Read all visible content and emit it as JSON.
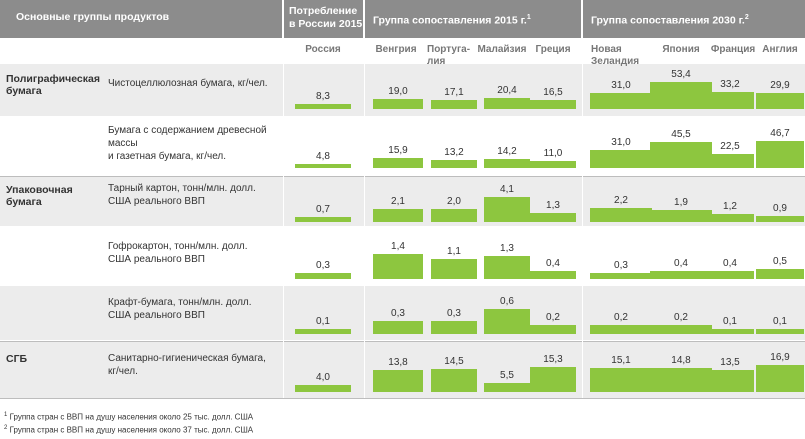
{
  "header": {
    "groups_label": "Основные группы продуктов",
    "consumption_label": [
      "Потребление",
      "в России 2015"
    ],
    "group2015_label": "Группа сопоставления 2015 г.",
    "group2015_note": "1",
    "group2030_label": "Группа сопоставления 2030 г.",
    "group2030_note": "2"
  },
  "countries": [
    {
      "lines": [
        "Россия"
      ]
    },
    {
      "lines": [
        "Венгрия"
      ]
    },
    {
      "lines": [
        "Португа-",
        "лия"
      ]
    },
    {
      "lines": [
        "Малайзия"
      ]
    },
    {
      "lines": [
        "Греция"
      ]
    },
    {
      "lines": [
        "Новая",
        "Зеландия"
      ]
    },
    {
      "lines": [
        "Япония"
      ]
    },
    {
      "lines": [
        "Франция"
      ]
    },
    {
      "lines": [
        "Англия"
      ]
    }
  ],
  "groups": [
    {
      "lines": [
        "Полиграфическая",
        "бумага"
      ]
    },
    {
      "lines": [
        "Упаковочная",
        "бумага"
      ]
    },
    {
      "lines": [
        "СГБ"
      ]
    }
  ],
  "products": [
    {
      "lines": [
        "Чистоцеллюлозная бумага, кг/чел."
      ]
    },
    {
      "lines": [
        "Бумага с содержанием древесной массы",
        "и газетная бумага, кг/чел."
      ]
    },
    {
      "lines": [
        "Тарный картон, тонн/млн. долл.",
        "США реального ВВП"
      ]
    },
    {
      "lines": [
        "Гофрокартон, тонн/млн. долл.",
        "США реального ВВП"
      ]
    },
    {
      "lines": [
        "Крафт-бумага, тонн/млн. долл.",
        "США реального ВВП"
      ]
    },
    {
      "lines": [
        "Санитарно-гигиеническая бумага,",
        "кг/чел."
      ]
    }
  ],
  "chart_data": {
    "type": "bar",
    "categories": [
      "Россия",
      "Венгрия",
      "Португалия",
      "Малайзия",
      "Греция",
      "Новая Зеландия",
      "Япония",
      "Франция",
      "Англия"
    ],
    "rows": [
      {
        "group": "Полиграфическая бумага",
        "product": "Чистоцеллюлозная бумага, кг/чел.",
        "values": [
          8.3,
          19.0,
          17.1,
          20.4,
          16.5,
          31.0,
          53.4,
          33.2,
          29.9
        ],
        "labels": [
          "8,3",
          "19,0",
          "17,1",
          "20,4",
          "16,5",
          "31,0",
          "53,4",
          "33,2",
          "29,9"
        ]
      },
      {
        "group": "Полиграфическая бумага",
        "product": "Бумага с содержанием древесной массы и газетная бумага, кг/чел.",
        "values": [
          4.8,
          15.9,
          13.2,
          14.2,
          11.0,
          31.0,
          45.5,
          22.5,
          46.7
        ],
        "labels": [
          "4,8",
          "15,9",
          "13,2",
          "14,2",
          "11,0",
          "31,0",
          "45,5",
          "22,5",
          "46,7"
        ]
      },
      {
        "group": "Упаковочная бумага",
        "product": "Тарный картон, тонн/млн. долл. США реального ВВП",
        "values": [
          0.7,
          2.1,
          2.0,
          4.1,
          1.3,
          2.2,
          1.9,
          1.2,
          0.9
        ],
        "labels": [
          "0,7",
          "2,1",
          "2,0",
          "4,1",
          "1,3",
          "2,2",
          "1,9",
          "1,2",
          "0,9"
        ]
      },
      {
        "group": "Упаковочная бумага",
        "product": "Гофрокартон, тонн/млн. долл. США реального ВВП",
        "values": [
          0.3,
          1.4,
          1.1,
          1.3,
          0.4,
          0.3,
          0.4,
          0.4,
          0.5
        ],
        "labels": [
          "0,3",
          "1,4",
          "1,1",
          "1,3",
          "0,4",
          "0,3",
          "0,4",
          "0,4",
          "0,5"
        ]
      },
      {
        "group": "Упаковочная бумага",
        "product": "Крафт-бумага, тонн/млн. долл. США реального ВВП",
        "values": [
          0.1,
          0.3,
          0.3,
          0.6,
          0.2,
          0.2,
          0.2,
          0.1,
          0.1
        ],
        "labels": [
          "0,1",
          "0,3",
          "0,3",
          "0,6",
          "0,2",
          "0,2",
          "0,2",
          "0,1",
          "0,1"
        ]
      },
      {
        "group": "СГБ",
        "product": "Санитарно-гигиеническая бумага, кг/чел.",
        "values": [
          4.0,
          13.8,
          14.5,
          5.5,
          15.3,
          15.1,
          14.8,
          13.5,
          16.9
        ],
        "labels": [
          "4,0",
          "13,8",
          "14,5",
          "5,5",
          "15,3",
          "15,1",
          "14,8",
          "13,5",
          "16,9"
        ]
      }
    ],
    "colors": {
      "bar": "#8dc63f",
      "header": "#8c8c8c",
      "row_band": "#ececec"
    }
  },
  "footnotes": [
    {
      "mark": "1",
      "text": "Группа стран с ВВП на душу населения около 25 тыс. долл. США"
    },
    {
      "mark": "2",
      "text": "Группа стран с ВВП на душу населения около 37 тыс. долл. США"
    }
  ]
}
